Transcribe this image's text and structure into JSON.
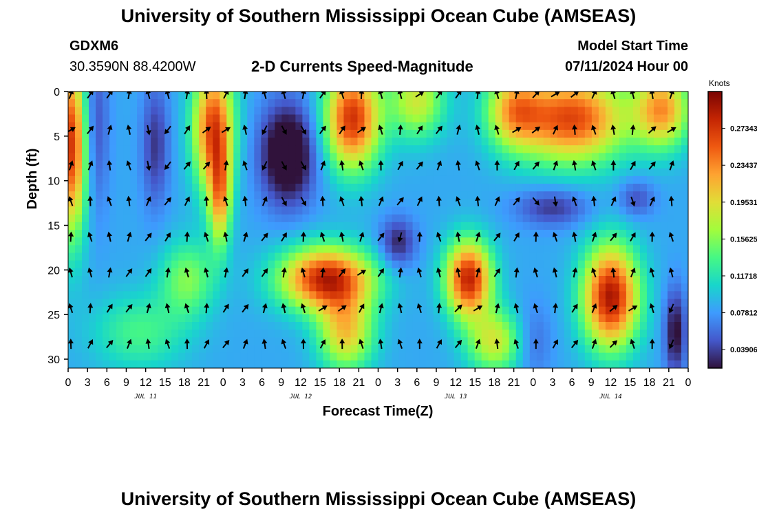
{
  "header": {
    "title": "University of Southern Mississippi Ocean Cube (AMSEAS)",
    "station_id": "GDXM6",
    "station_coords": "30.3590N  88.4200W",
    "plot_title": "2-D Currents Speed-Magnitude",
    "model_start_label": "Model Start Time",
    "model_start_value": "07/11/2024 Hour 00"
  },
  "footer": {
    "title": "University of Southern Mississippi Ocean Cube (AMSEAS)"
  },
  "chart_data": {
    "type": "heatmap",
    "title": "2-D Currents Speed-Magnitude",
    "xlabel": "Forecast Time(Z)",
    "ylabel": "Depth (ft)",
    "x_tick_labels": [
      "0",
      "3",
      "6",
      "9",
      "12",
      "15",
      "18",
      "21",
      "0",
      "3",
      "6",
      "9",
      "12",
      "15",
      "18",
      "21",
      "0",
      "3",
      "6",
      "9",
      "12",
      "15",
      "18",
      "21",
      "0",
      "3",
      "6",
      "9",
      "12",
      "15",
      "18",
      "21",
      "0"
    ],
    "date_labels": [
      {
        "label": "JUL 11",
        "hour": 12
      },
      {
        "label": "JUL 12",
        "hour": 36
      },
      {
        "label": "JUL 13",
        "hour": 60
      },
      {
        "label": "JUL 14",
        "hour": 84
      }
    ],
    "x_range_hours": [
      0,
      96
    ],
    "y_ticks": [
      0,
      5,
      10,
      15,
      20,
      25,
      30
    ],
    "y_range": [
      0,
      31
    ],
    "colorbar": {
      "title": "Knots",
      "range": [
        0.0195,
        0.3125
      ],
      "tick_values": [
        0.27343,
        0.23437,
        0.19531,
        0.15625,
        0.11718,
        0.07812,
        0.03906
      ],
      "tick_labels": [
        "0.27343",
        "0.23437",
        "0.19531",
        "0.15625",
        "0.11718",
        "0.07812",
        "0.03906"
      ]
    },
    "vector_depths": [
      0,
      4,
      8,
      12,
      16,
      20,
      24,
      28
    ],
    "vector_time_step_hours": 3,
    "speed_blobs_knots": [
      {
        "t": 0.5,
        "d": 6,
        "st": 1.8,
        "sd": 7,
        "v": 0.19
      },
      {
        "t": 4,
        "d": 4,
        "st": 1.5,
        "sd": 7,
        "v": -0.05
      },
      {
        "t": 13.5,
        "d": 6,
        "st": 1.5,
        "sd": 5,
        "v": -0.05
      },
      {
        "t": 22.5,
        "d": 4,
        "st": 2.2,
        "sd": 5,
        "v": 0.18
      },
      {
        "t": 23.5,
        "d": 12,
        "st": 1.2,
        "sd": 4,
        "v": 0.12
      },
      {
        "t": 34,
        "d": 7,
        "st": 3,
        "sd": 4,
        "v": -0.1
      },
      {
        "t": 44,
        "d": 3,
        "st": 3,
        "sd": 4,
        "v": 0.19
      },
      {
        "t": 54,
        "d": 1,
        "st": 3,
        "sd": 3,
        "v": 0.1
      },
      {
        "t": 69,
        "d": 2,
        "st": 3,
        "sd": 3,
        "v": 0.11
      },
      {
        "t": 78,
        "d": 3,
        "st": 6,
        "sd": 3.5,
        "v": 0.18
      },
      {
        "t": 92,
        "d": 2,
        "st": 3,
        "sd": 3,
        "v": 0.14
      },
      {
        "t": 75,
        "d": 13,
        "st": 4,
        "sd": 1.5,
        "v": -0.05
      },
      {
        "t": 88,
        "d": 12,
        "st": 2,
        "sd": 1.5,
        "v": -0.04
      },
      {
        "t": 51,
        "d": 17,
        "st": 2,
        "sd": 2,
        "v": -0.06
      },
      {
        "t": 40,
        "d": 21,
        "st": 5,
        "sd": 2.5,
        "v": 0.2
      },
      {
        "t": 43,
        "d": 27,
        "st": 3,
        "sd": 3,
        "v": 0.12
      },
      {
        "t": 62,
        "d": 21,
        "st": 2.5,
        "sd": 3,
        "v": 0.2
      },
      {
        "t": 66,
        "d": 28,
        "st": 3,
        "sd": 2.5,
        "v": 0.1
      },
      {
        "t": 84,
        "d": 23,
        "st": 3,
        "sd": 4,
        "v": 0.21
      },
      {
        "t": 18.5,
        "d": 21,
        "st": 3,
        "sd": 3,
        "v": 0.07
      },
      {
        "t": 11,
        "d": 27,
        "st": 5,
        "sd": 3,
        "v": 0.05
      },
      {
        "t": 94,
        "d": 27,
        "st": 1.2,
        "sd": 3.5,
        "v": -0.07
      },
      {
        "t": 72,
        "d": 28,
        "st": 2,
        "sd": 3,
        "v": -0.03
      }
    ]
  }
}
